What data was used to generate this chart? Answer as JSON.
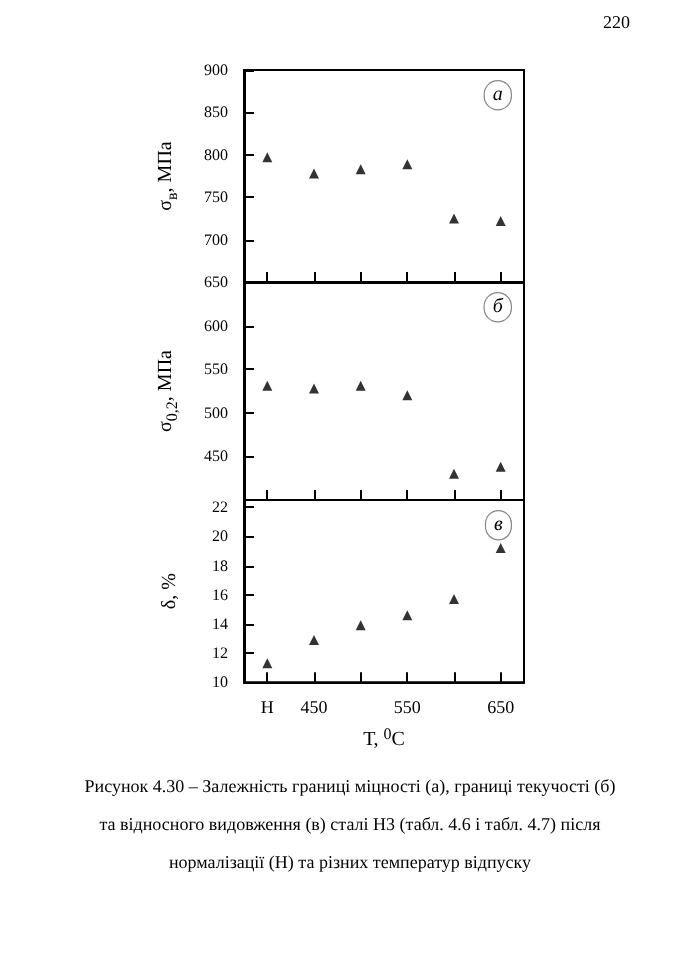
{
  "chart_data": [
    {
      "type": "scatter",
      "ylabel": "σ$_{в}$, МПа",
      "categories": [
        null,
        null,
        null,
        null,
        null,
        null
      ],
      "values": [
        797,
        778,
        783,
        789,
        725,
        722
      ],
      "color": "#000000",
      "marker": "triangle",
      "ylim": [
        650,
        900
      ],
      "yticks": [
        650,
        700,
        750,
        800,
        850,
        900
      ],
      "tick_labels": "y",
      "annotations": [
        "а",
        "220"
      ]
    },
    {
      "type": "scatter",
      "ylabel": "σ$_{0,2}$, МПа",
      "categories": [
        null,
        null,
        null,
        null,
        null,
        null
      ],
      "values": [
        531,
        528,
        531,
        520,
        430,
        438
      ],
      "color": "#000000",
      "marker": "triangle",
      "ylim": [
        400,
        650
      ],
      "yticks": [
        {
          "value": 400,
          "label": null
        },
        450,
        500,
        550,
        600,
        {
          "value": 650,
          "label": null
        }
      ],
      "tick_labels": "y",
      "annotations": [
        "б"
      ]
    },
    {
      "type": "scatter",
      "ylabel": "δ, %",
      "xlabel": "Т, $^{0}$С",
      "categories": [
        "Н",
        "450",
        null,
        "550",
        null,
        "650"
      ],
      "values": [
        11.3,
        12.9,
        13.9,
        14.6,
        15.7,
        19.2
      ],
      "color": "#000000",
      "marker": "triangle",
      "ylim": [
        10,
        22.5
      ],
      "yticks": [
        10,
        12,
        14,
        16,
        18,
        20,
        22
      ],
      "annotations": [
        "в",
        "Рисунок 4.30 – Залежність границі міцності (а), границі текучості (б) та відносного видовження (в) сталі Н3 (табл. 4.6 і табл. 4.7) після нормалізації (Н) та різних температур відпуску"
      ]
    }
  ]
}
